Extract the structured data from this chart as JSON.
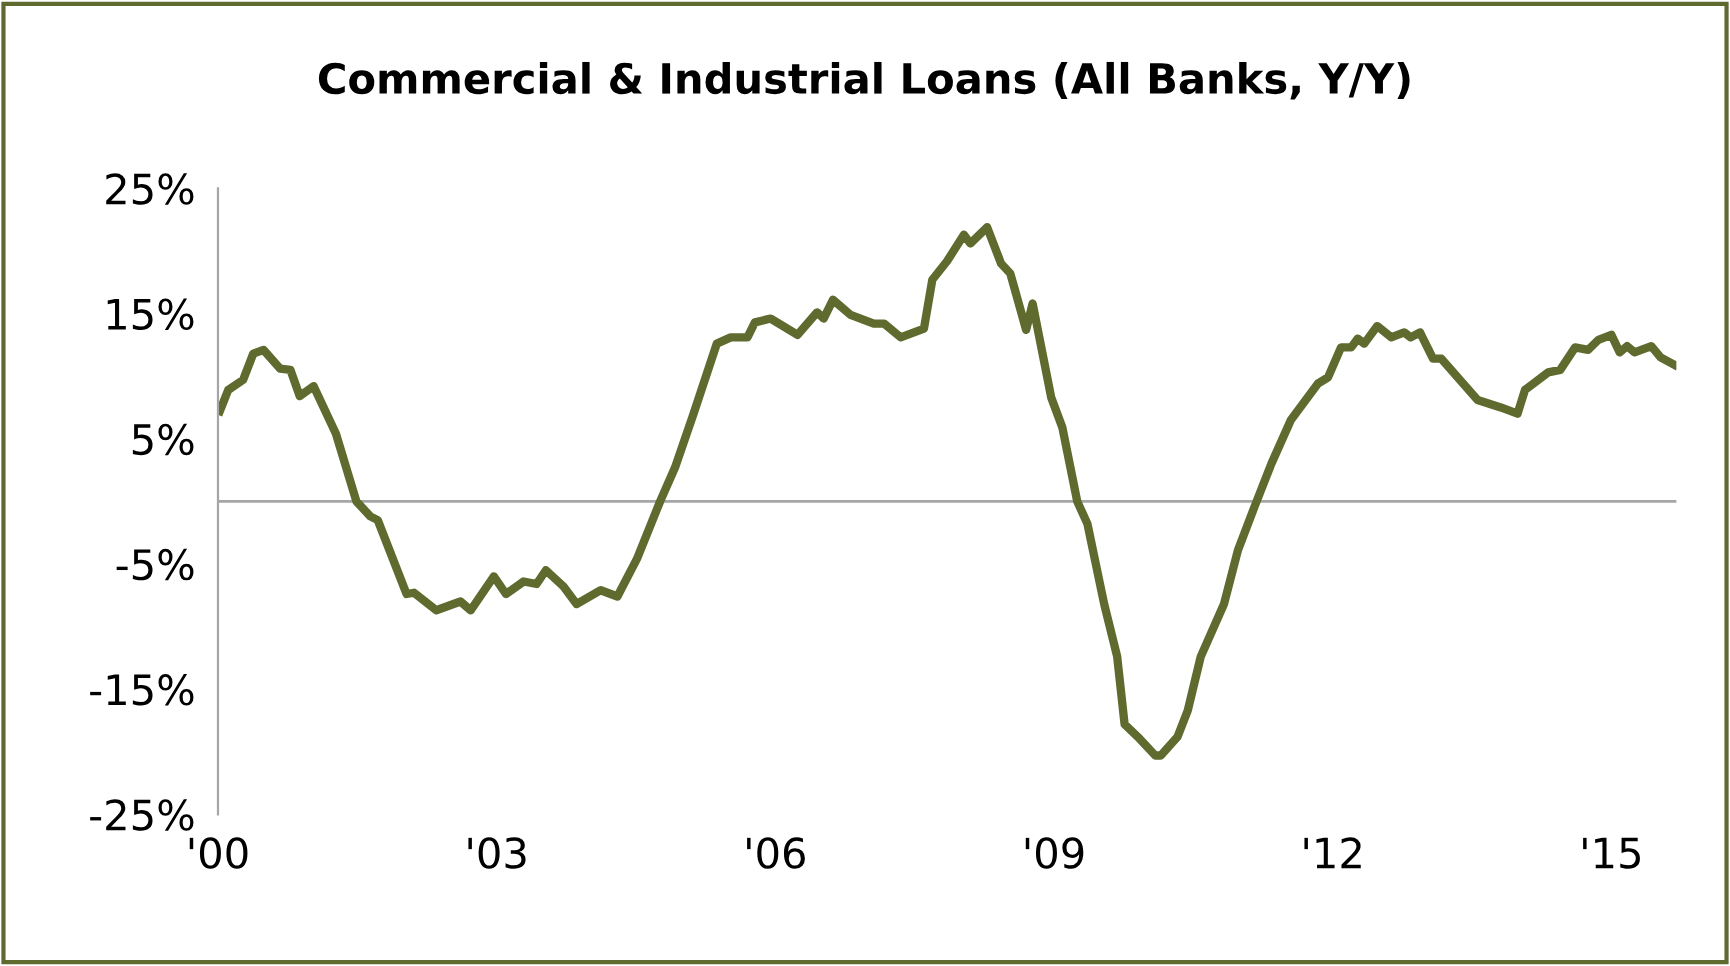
{
  "chart_data": {
    "type": "line",
    "title": "Commercial & Industrial Loans (All Banks, Y/Y)",
    "x": [
      2000.02,
      2000.11,
      2000.27,
      2000.38,
      2000.49,
      2000.67,
      2000.78,
      2000.88,
      2001.03,
      2001.27,
      2001.49,
      2001.64,
      2001.72,
      2002.03,
      2002.11,
      2002.35,
      2002.61,
      2002.72,
      2002.97,
      2003.1,
      2003.29,
      2003.43,
      2003.53,
      2003.72,
      2003.86,
      2004.12,
      2004.3,
      2004.51,
      2004.76,
      2004.92,
      2005.12,
      2005.37,
      2005.52,
      2005.7,
      2005.78,
      2005.95,
      2006.24,
      2006.45,
      2006.52,
      2006.62,
      2006.81,
      2007.06,
      2007.17,
      2007.35,
      2007.6,
      2007.69,
      2007.85,
      2008.03,
      2008.1,
      2008.28,
      2008.43,
      2008.53,
      2008.7,
      2008.77,
      2008.97,
      2009.09,
      2009.25,
      2009.36,
      2009.54,
      2009.68,
      2009.76,
      2009.9,
      2010.09,
      2010.15,
      2010.33,
      2010.44,
      2010.58,
      2010.83,
      2010.98,
      2011.16,
      2011.34,
      2011.55,
      2011.84,
      2011.95,
      2012.09,
      2012.2,
      2012.27,
      2012.34,
      2012.48,
      2012.63,
      2012.77,
      2012.84,
      2012.94,
      2013.08,
      2013.17,
      2013.56,
      2013.81,
      2013.99,
      2014.07,
      2014.32,
      2014.45,
      2014.61,
      2014.75,
      2014.86,
      2015.0,
      2015.09,
      2015.17,
      2015.25,
      2015.43,
      2015.53,
      2015.68
    ],
    "series": [
      {
        "color": "#5f6b2e",
        "values": [
          7.2,
          8.9,
          9.7,
          11.8,
          12.1,
          10.6,
          10.5,
          8.4,
          9.2,
          5.4,
          0,
          -1.2,
          -1.5,
          -7.4,
          -7.3,
          -8.7,
          -8.0,
          -8.7,
          -6.0,
          -7.4,
          -6.4,
          -6.6,
          -5.5,
          -6.8,
          -8.2,
          -7.1,
          -7.6,
          -4.6,
          0,
          2.7,
          7.0,
          12.6,
          13.1,
          13.1,
          14.3,
          14.6,
          13.3,
          15.1,
          14.6,
          16.1,
          14.9,
          14.2,
          14.2,
          13.1,
          13.8,
          17.7,
          19.2,
          21.3,
          20.6,
          21.9,
          19.0,
          18.2,
          13.7,
          15.8,
          8.3,
          5.9,
          0,
          -1.8,
          -8.2,
          -12.4,
          -17.8,
          -18.8,
          -20.3,
          -20.3,
          -18.8,
          -16.7,
          -12.4,
          -8.2,
          -3.9,
          -0.4,
          3.0,
          6.5,
          9.4,
          9.9,
          12.3,
          12.3,
          13.0,
          12.6,
          14.0,
          13.1,
          13.5,
          13.1,
          13.5,
          11.4,
          11.4,
          8.1,
          7.5,
          7.0,
          8.9,
          10.3,
          10.5,
          12.3,
          12.1,
          12.9,
          13.3,
          11.9,
          12.4,
          11.9,
          12.4,
          11.5,
          10.9
        ]
      }
    ],
    "xlim": [
      2000,
      2015.7
    ],
    "xticks": [
      {
        "value": 2000,
        "label": "'00"
      },
      {
        "value": 2003,
        "label": "'03"
      },
      {
        "value": 2006,
        "label": "'06"
      },
      {
        "value": 2009,
        "label": "'09"
      },
      {
        "value": 2012,
        "label": "'12"
      },
      {
        "value": 2015,
        "label": "'15"
      }
    ],
    "ylim": [
      -25,
      25
    ],
    "yticks": [
      {
        "value": -25,
        "label": "-25%"
      },
      {
        "value": -15,
        "label": "-15%"
      },
      {
        "value": -5,
        "label": "-5%"
      },
      {
        "value": 5,
        "label": "5%"
      },
      {
        "value": 15,
        "label": "15%"
      },
      {
        "value": 25,
        "label": "25%"
      }
    ],
    "ref_lines": [
      {
        "axis": "y",
        "value": 0,
        "color": "#a6a6a6"
      }
    ],
    "grid": false,
    "legend": false,
    "marker": "none",
    "line_style": "solid"
  }
}
